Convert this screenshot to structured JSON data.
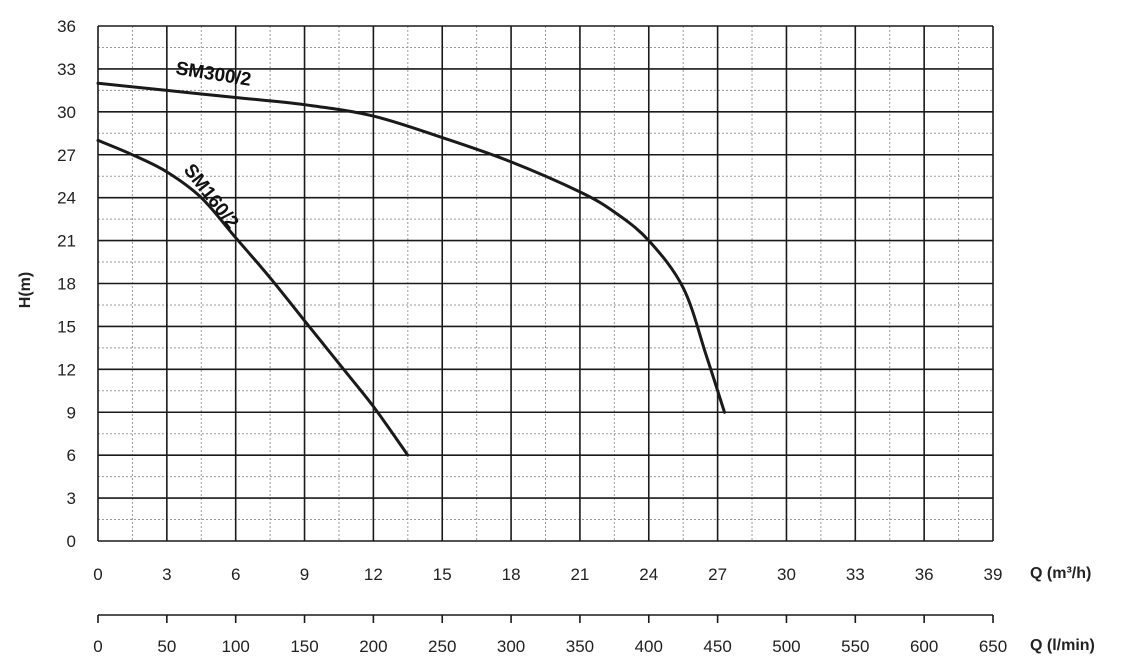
{
  "chart_data": {
    "type": "line",
    "ylabel": "H(m)",
    "xlabel": "Q (m³/h)",
    "x2label": "Q (l/min)",
    "xlim": [
      0,
      39
    ],
    "ylim": [
      0,
      36
    ],
    "x2lim": [
      0,
      650
    ],
    "x_ticks": [
      "0",
      "3",
      "6",
      "9",
      "12",
      "15",
      "18",
      "21",
      "24",
      "27",
      "30",
      "33",
      "36",
      "39"
    ],
    "x2_ticks": [
      "0",
      "50",
      "100",
      "150",
      "200",
      "250",
      "300",
      "350",
      "400",
      "450",
      "500",
      "550",
      "600",
      "650"
    ],
    "y_ticks": [
      "0",
      "3",
      "6",
      "9",
      "12",
      "15",
      "18",
      "21",
      "24",
      "27",
      "30",
      "33",
      "36"
    ],
    "grid": true,
    "series": [
      {
        "name": "SM300/2",
        "color": "#1a1a1a",
        "points": [
          [
            0,
            32
          ],
          [
            3,
            31.5
          ],
          [
            6,
            31
          ],
          [
            9,
            30.5
          ],
          [
            12,
            29.7
          ],
          [
            15,
            28.2
          ],
          [
            18,
            26.5
          ],
          [
            21,
            24.4
          ],
          [
            22.5,
            23
          ],
          [
            24,
            21
          ],
          [
            25.5,
            17.7
          ],
          [
            26.5,
            13
          ],
          [
            27.3,
            9
          ]
        ]
      },
      {
        "name": "SM160/2",
        "color": "#1a1a1a",
        "points": [
          [
            0,
            28
          ],
          [
            1.5,
            27
          ],
          [
            3,
            25.8
          ],
          [
            4.5,
            24
          ],
          [
            6,
            21.2
          ],
          [
            7.5,
            18.4
          ],
          [
            9,
            15.4
          ],
          [
            10.5,
            12.4
          ],
          [
            12,
            9.4
          ],
          [
            13.5,
            6
          ]
        ]
      }
    ]
  }
}
